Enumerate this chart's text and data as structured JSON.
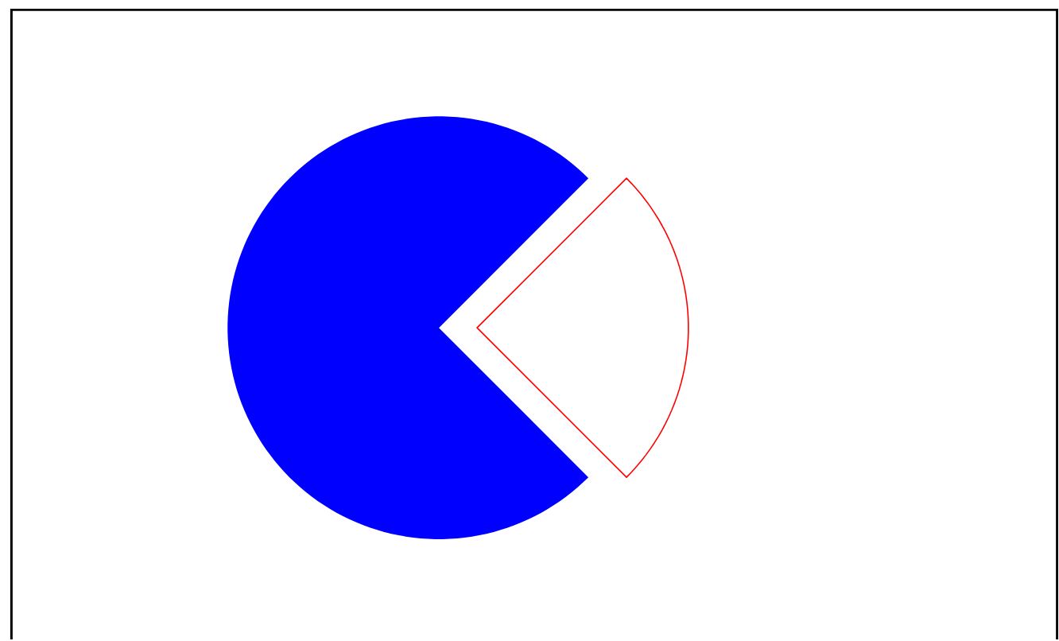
{
  "chart_data": {
    "type": "pie",
    "categories": [
      null,
      null
    ],
    "values": [
      75,
      25
    ],
    "colors": [
      "#0000ff",
      "#ff0000"
    ]
  }
}
